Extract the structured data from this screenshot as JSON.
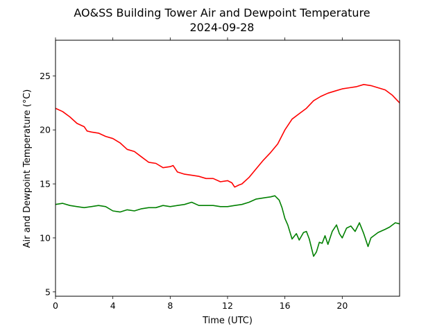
{
  "chart_data": {
    "type": "line",
    "title": "AO&SS Building Tower Air and Dewpoint Temperature",
    "subtitle": "2024-09-28",
    "xlabel": "Time (UTC)",
    "ylabel": "Air and Dewpoint Temperature (°C)",
    "xlim": [
      0,
      24
    ],
    "ylim": [
      4.6,
      28.3
    ],
    "xticks": [
      0,
      4,
      8,
      12,
      16,
      20
    ],
    "yticks": [
      5,
      10,
      15,
      20,
      25
    ],
    "grid": false,
    "series": [
      {
        "color": "#ff0000",
        "points": [
          [
            0,
            22.0
          ],
          [
            0.5,
            21.7
          ],
          [
            1,
            21.2
          ],
          [
            1.5,
            20.6
          ],
          [
            2,
            20.3
          ],
          [
            2.2,
            19.9
          ],
          [
            2.5,
            19.8
          ],
          [
            3,
            19.7
          ],
          [
            3.5,
            19.4
          ],
          [
            4,
            19.2
          ],
          [
            4.5,
            18.8
          ],
          [
            5,
            18.2
          ],
          [
            5.5,
            18.0
          ],
          [
            6,
            17.5
          ],
          [
            6.5,
            17.0
          ],
          [
            7,
            16.9
          ],
          [
            7.5,
            16.5
          ],
          [
            8,
            16.6
          ],
          [
            8.2,
            16.7
          ],
          [
            8.5,
            16.1
          ],
          [
            9,
            15.9
          ],
          [
            9.5,
            15.8
          ],
          [
            10,
            15.7
          ],
          [
            10.5,
            15.5
          ],
          [
            11,
            15.5
          ],
          [
            11.5,
            15.2
          ],
          [
            12,
            15.3
          ],
          [
            12.3,
            15.1
          ],
          [
            12.5,
            14.7
          ],
          [
            12.8,
            14.9
          ],
          [
            13,
            15.0
          ],
          [
            13.5,
            15.6
          ],
          [
            14,
            16.4
          ],
          [
            14.5,
            17.2
          ],
          [
            15,
            17.9
          ],
          [
            15.5,
            18.7
          ],
          [
            16,
            20.0
          ],
          [
            16.5,
            21.0
          ],
          [
            17,
            21.5
          ],
          [
            17.5,
            22.0
          ],
          [
            18,
            22.7
          ],
          [
            18.5,
            23.1
          ],
          [
            19,
            23.4
          ],
          [
            19.5,
            23.6
          ],
          [
            20,
            23.8
          ],
          [
            20.5,
            23.9
          ],
          [
            21,
            24.0
          ],
          [
            21.5,
            24.2
          ],
          [
            22,
            24.1
          ],
          [
            22.5,
            23.9
          ],
          [
            23,
            23.7
          ],
          [
            23.5,
            23.2
          ],
          [
            24,
            22.5
          ]
        ]
      },
      {
        "color": "#008000",
        "points": [
          [
            0,
            13.1
          ],
          [
            0.5,
            13.2
          ],
          [
            1,
            13.0
          ],
          [
            1.5,
            12.9
          ],
          [
            2,
            12.8
          ],
          [
            2.5,
            12.9
          ],
          [
            3,
            13.0
          ],
          [
            3.5,
            12.9
          ],
          [
            4,
            12.5
          ],
          [
            4.5,
            12.4
          ],
          [
            5,
            12.6
          ],
          [
            5.5,
            12.5
          ],
          [
            6,
            12.7
          ],
          [
            6.5,
            12.8
          ],
          [
            7,
            12.8
          ],
          [
            7.5,
            13.0
          ],
          [
            8,
            12.9
          ],
          [
            8.5,
            13.0
          ],
          [
            9,
            13.1
          ],
          [
            9.5,
            13.3
          ],
          [
            10,
            13.0
          ],
          [
            10.5,
            13.0
          ],
          [
            11,
            13.0
          ],
          [
            11.5,
            12.9
          ],
          [
            12,
            12.9
          ],
          [
            12.5,
            13.0
          ],
          [
            13,
            13.1
          ],
          [
            13.5,
            13.3
          ],
          [
            14,
            13.6
          ],
          [
            14.5,
            13.7
          ],
          [
            15,
            13.8
          ],
          [
            15.3,
            13.9
          ],
          [
            15.6,
            13.5
          ],
          [
            15.8,
            12.8
          ],
          [
            16,
            11.8
          ],
          [
            16.2,
            11.2
          ],
          [
            16.5,
            9.9
          ],
          [
            16.8,
            10.4
          ],
          [
            17,
            9.8
          ],
          [
            17.3,
            10.5
          ],
          [
            17.5,
            10.6
          ],
          [
            17.7,
            9.9
          ],
          [
            18,
            8.3
          ],
          [
            18.2,
            8.7
          ],
          [
            18.4,
            9.6
          ],
          [
            18.6,
            9.5
          ],
          [
            18.8,
            10.2
          ],
          [
            19,
            9.4
          ],
          [
            19.3,
            10.6
          ],
          [
            19.6,
            11.2
          ],
          [
            19.8,
            10.4
          ],
          [
            20,
            10.0
          ],
          [
            20.3,
            10.9
          ],
          [
            20.6,
            11.1
          ],
          [
            20.9,
            10.6
          ],
          [
            21.2,
            11.4
          ],
          [
            21.5,
            10.4
          ],
          [
            21.8,
            9.2
          ],
          [
            22,
            10.0
          ],
          [
            22.5,
            10.5
          ],
          [
            23,
            10.8
          ],
          [
            23.3,
            11.0
          ],
          [
            23.7,
            11.4
          ],
          [
            24,
            11.3
          ]
        ]
      }
    ]
  }
}
